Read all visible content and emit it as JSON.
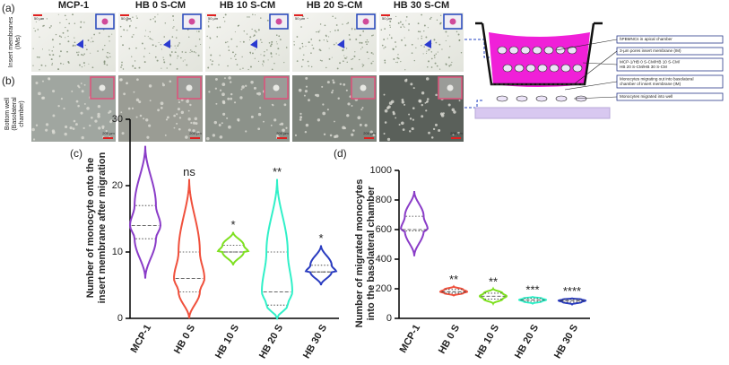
{
  "panel_labels": [
    "(a)",
    "(b)",
    "(c)",
    "(d)"
  ],
  "micrographs": {
    "columns": [
      "MCP-1",
      "HB 0 S-CM",
      "HB 10 S-CM",
      "HB 20 S-CM",
      "HB 30 S-CM"
    ],
    "row_labels": [
      [
        "Insert membranes",
        "(IMs)"
      ],
      [
        "Bottom well",
        "(Basolateral",
        "chamber)"
      ]
    ],
    "scale_bars": [
      "50 µm",
      "200 µm"
    ]
  },
  "schematic": {
    "labels": [
      [
        "hPBMNCs in apical chamber"
      ],
      [
        "3-µm pores insert membrane (IM)"
      ],
      [
        "MCP-1/HB 0 S-CM/HB 10 S-CM/",
        "HB 20 S-CM/HB 30 S-CM"
      ],
      [
        "Monocytes migrating out into basolateral",
        "chamber of insert membrane (IM)"
      ],
      [
        "Monocytes migrated into well"
      ]
    ]
  },
  "chart_data": [
    {
      "type": "violin",
      "ylabel": [
        "Number of monocyte onto the",
        "insert membrane after migration"
      ],
      "categories": [
        "MCP-1",
        "HB 0 S",
        "HB 10 S",
        "HB 20 S",
        "HB 30 S"
      ],
      "colors": [
        "#8a3cc8",
        "#f0503c",
        "#7ee020",
        "#30f0c8",
        "#2a3cc0"
      ],
      "min": [
        6,
        0,
        8,
        0,
        5
      ],
      "q1": [
        12,
        4,
        10,
        2,
        7
      ],
      "median": [
        14,
        6,
        10,
        4,
        7
      ],
      "q3": [
        17,
        10,
        11,
        10,
        8
      ],
      "max": [
        26,
        21,
        13,
        21,
        11
      ],
      "significance": [
        null,
        "ns",
        "*",
        "**",
        "*"
      ],
      "ylim": [
        0,
        30
      ],
      "yticks": [
        0,
        10,
        20,
        30
      ]
    },
    {
      "type": "violin",
      "ylabel": [
        "Number of migrated monocytes",
        "into the basolateral chamber"
      ],
      "categories": [
        "MCP-1",
        "HB 0 S",
        "HB 10 S",
        "HB 20 S",
        "HB 30 S"
      ],
      "colors": [
        "#8a3cc8",
        "#f0503c",
        "#7ee020",
        "#30f0c8",
        "#2a3cc0"
      ],
      "min": [
        420,
        155,
        100,
        100,
        95
      ],
      "q1": [
        590,
        170,
        130,
        115,
        110
      ],
      "median": [
        600,
        180,
        150,
        125,
        120
      ],
      "q3": [
        690,
        195,
        170,
        135,
        128
      ],
      "max": [
        860,
        215,
        200,
        145,
        135
      ],
      "significance": [
        null,
        "**",
        "**",
        "***",
        "****"
      ],
      "ylim": [
        0,
        1000
      ],
      "yticks": [
        0,
        200,
        400,
        600,
        800,
        1000
      ]
    }
  ]
}
